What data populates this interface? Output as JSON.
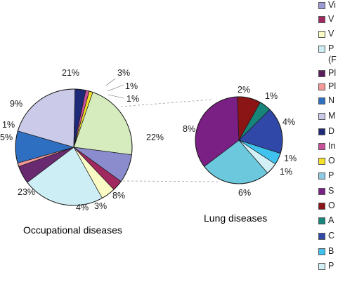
{
  "chart_data": [
    {
      "type": "pie",
      "title": "Occupational diseases",
      "slices": [
        {
          "label": "22%",
          "value": 22,
          "color": "#d6ecbf"
        },
        {
          "label": "8%",
          "value": 8,
          "color": "#8a8ccd"
        },
        {
          "label": "3%",
          "value": 3,
          "color": "#a0285e"
        },
        {
          "label": "4%",
          "value": 4,
          "color": "#fbfbc6"
        },
        {
          "label": "23%",
          "value": 23,
          "color": "#cdeef5"
        },
        {
          "label": "5%",
          "value": 5,
          "color": "#6a2a70"
        },
        {
          "label": "1%",
          "value": 1,
          "color": "#f59a98"
        },
        {
          "label": "9%",
          "value": 9,
          "color": "#2f6fc1"
        },
        {
          "label": "21%",
          "value": 21,
          "color": "#cbcbe9"
        },
        {
          "label": "3%",
          "value": 3,
          "color": "#1e2a78"
        },
        {
          "label": "1%",
          "value": 1,
          "color": "#c8509a"
        },
        {
          "label": "1%",
          "value": 1,
          "color": "#f5e12a"
        }
      ]
    },
    {
      "type": "pie",
      "title": "Lung diseases",
      "slices": [
        {
          "label": "4%",
          "value": 4,
          "color": "#3048a8"
        },
        {
          "label": "1%",
          "value": 1,
          "color": "#3fc3ee"
        },
        {
          "label": "1%",
          "value": 1,
          "color": "#d2f0f6"
        },
        {
          "label": "6%",
          "value": 6,
          "color": "#6cc8dd"
        },
        {
          "label": "8%",
          "value": 8,
          "color": "#7a1f84"
        },
        {
          "label": "2%",
          "value": 2,
          "color": "#8b1414"
        },
        {
          "label": "1%",
          "value": 1,
          "color": "#17857a"
        }
      ]
    }
  ],
  "legend": [
    {
      "text": "Vi",
      "color": "#9b9bd8"
    },
    {
      "text": "V",
      "color": "#a0285e"
    },
    {
      "text": "V",
      "color": "#fbfbc6"
    },
    {
      "text": "P",
      "color": "#cdeef5"
    },
    {
      "text": "(F",
      "color": ""
    },
    {
      "text": "Pl",
      "color": "#5a1e5e"
    },
    {
      "text": "Pl",
      "color": "#f59a98"
    },
    {
      "text": "N",
      "color": "#2f6fc1"
    },
    {
      "text": "M",
      "color": "#cbcbe9"
    },
    {
      "text": "D",
      "color": "#1e2a78"
    },
    {
      "text": "In",
      "color": "#c8509a"
    },
    {
      "text": "O",
      "color": "#f5e12a"
    },
    {
      "text": "P",
      "color": "#8ec9e6"
    },
    {
      "text": "S",
      "color": "#7a1f84"
    },
    {
      "text": "O",
      "color": "#8b1414"
    },
    {
      "text": "A",
      "color": "#17857a"
    },
    {
      "text": "C",
      "color": "#3048a8"
    },
    {
      "text": "B",
      "color": "#3fc3ee"
    },
    {
      "text": "P",
      "color": "#d2f0f6"
    }
  ]
}
